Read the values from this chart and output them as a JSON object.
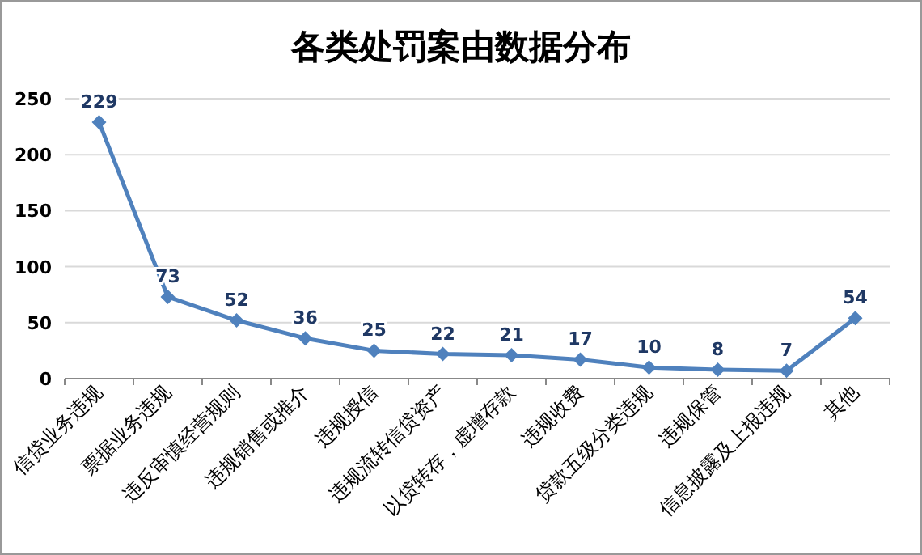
{
  "chart_data": {
    "type": "line",
    "title": "各类处罚案由数据分布",
    "categories": [
      "信贷业务违规",
      "票据业务违规",
      "违反审慎经营规则",
      "违规销售或推介",
      "违规授信",
      "违规流转信贷资产",
      "以贷转存，虚增存款",
      "违规收费",
      "贷款五级分类违规",
      "违规保管",
      "信息披露及上报违规",
      "其他"
    ],
    "series": [
      {
        "color": "#4f81bd",
        "values": [
          229,
          73,
          52,
          36,
          25,
          22,
          21,
          17,
          10,
          8,
          7,
          54
        ]
      }
    ],
    "ylim": [
      0,
      250
    ],
    "yticks": [
      0,
      50,
      100,
      150,
      200,
      250
    ],
    "grid": "y",
    "marker": "diamond",
    "line_style": "solid",
    "data_labels": true
  }
}
